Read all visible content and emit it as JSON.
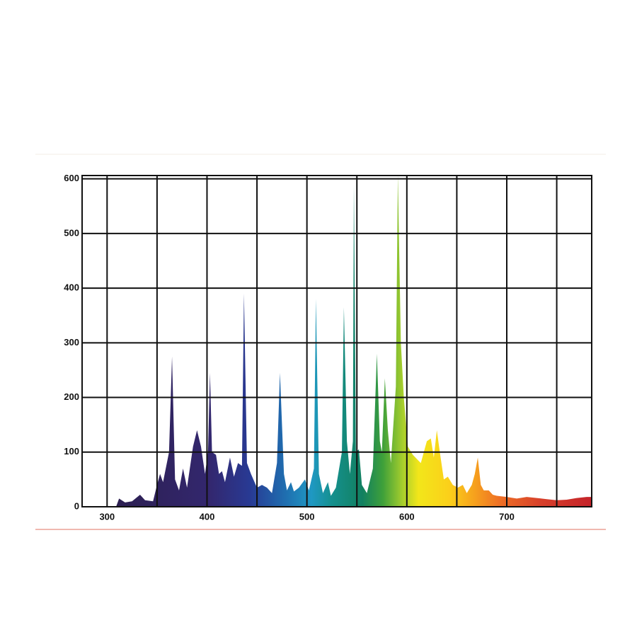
{
  "chart_data": {
    "type": "area",
    "x": [
      309,
      312,
      318,
      325,
      333,
      338,
      346,
      350,
      353,
      356,
      362,
      365,
      368,
      372,
      376,
      380,
      386,
      390,
      394,
      398,
      401,
      403,
      405,
      409,
      412,
      415,
      418,
      423,
      427,
      431,
      435,
      437,
      440,
      444,
      450,
      455,
      460,
      465,
      470,
      473,
      477,
      480,
      484,
      487,
      492,
      498,
      502,
      507,
      509,
      512,
      516,
      521,
      524,
      529,
      535,
      537,
      540,
      543,
      546,
      547,
      549,
      552,
      555,
      560,
      566,
      570,
      573,
      575,
      578,
      581,
      584,
      589,
      591,
      594,
      597,
      601,
      606,
      614,
      620,
      624,
      627,
      630,
      633,
      637,
      641,
      646,
      651,
      656,
      660,
      665,
      668,
      671,
      674,
      677,
      682,
      686,
      690,
      700,
      710,
      720,
      730,
      740,
      750,
      760,
      770,
      780,
      785
    ],
    "values": [
      0,
      15,
      8,
      10,
      22,
      12,
      10,
      40,
      60,
      45,
      100,
      275,
      50,
      30,
      70,
      35,
      110,
      140,
      110,
      60,
      100,
      245,
      100,
      95,
      60,
      65,
      45,
      90,
      55,
      80,
      75,
      390,
      80,
      60,
      35,
      40,
      35,
      25,
      80,
      245,
      60,
      30,
      45,
      28,
      35,
      50,
      30,
      70,
      380,
      60,
      25,
      45,
      20,
      35,
      100,
      365,
      120,
      60,
      120,
      590,
      100,
      105,
      40,
      25,
      70,
      280,
      120,
      100,
      235,
      140,
      80,
      220,
      606,
      300,
      200,
      110,
      95,
      80,
      120,
      125,
      90,
      140,
      100,
      50,
      55,
      40,
      35,
      40,
      25,
      40,
      60,
      90,
      40,
      30,
      30,
      22,
      20,
      18,
      15,
      18,
      16,
      14,
      12,
      13,
      16,
      18,
      18
    ],
    "xlim": [
      275,
      785
    ],
    "ylim": [
      0,
      606
    ],
    "xticks": [
      300,
      400,
      500,
      600,
      700
    ],
    "yticks": [
      0,
      100,
      200,
      300,
      400,
      500,
      600
    ],
    "xgrid": [
      300,
      350,
      400,
      450,
      500,
      550,
      600,
      650,
      700,
      750
    ],
    "grid": true
  }
}
